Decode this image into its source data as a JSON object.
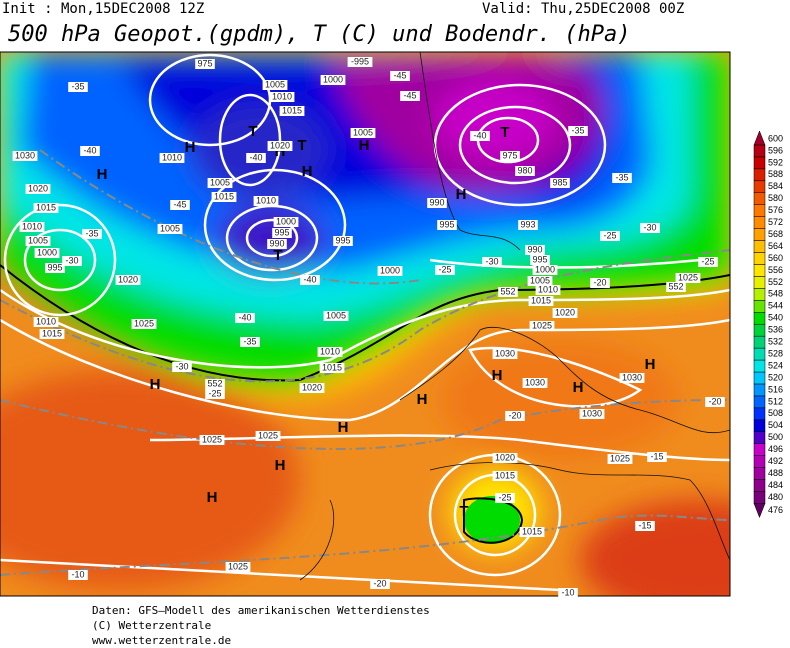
{
  "header": {
    "init": "Init : Mon,15DEC2008 12Z",
    "valid": "Valid: Thu,25DEC2008 00Z",
    "title": "500 hPa Geopot.(gpdm), T (C) und Bodendr. (hPa)"
  },
  "colorbar": {
    "levels": [
      476,
      480,
      484,
      488,
      492,
      496,
      500,
      504,
      508,
      512,
      516,
      520,
      524,
      528,
      532,
      536,
      540,
      544,
      548,
      552,
      556,
      560,
      564,
      568,
      572,
      576,
      580,
      584,
      588,
      592,
      596,
      600
    ],
    "colors": [
      "#600060",
      "#780078",
      "#8c008c",
      "#a000a0",
      "#b400b4",
      "#c800c8",
      "#5000c8",
      "#0000dc",
      "#0032ff",
      "#0064ff",
      "#0096ff",
      "#00c8ff",
      "#00e6e6",
      "#00dcb4",
      "#00d278",
      "#00d23c",
      "#00dc00",
      "#64e600",
      "#b4f000",
      "#e6f000",
      "#ffe600",
      "#ffd200",
      "#ffbe00",
      "#ffa000",
      "#ff8c00",
      "#ff7800",
      "#f05a00",
      "#e63c00",
      "#dc1e00",
      "#c80000",
      "#b40014",
      "#a00028"
    ]
  },
  "map_labels": [
    "-995",
    "-45",
    "-45",
    "1000",
    "1005",
    "1010",
    "1015",
    "T",
    "T",
    "H",
    "H",
    "-40",
    "1020",
    "H",
    "1005",
    "H",
    "1010",
    "1030",
    "-40",
    "H",
    "-35",
    "T",
    "-40",
    "-35",
    "975",
    "980",
    "985",
    "-35",
    "H",
    "990",
    "995",
    "993",
    "-25",
    "-30",
    "1020",
    "1015",
    "1010",
    "1005",
    "1000",
    "995",
    "-35",
    "-30",
    "1020",
    "-45",
    "1005",
    "1015",
    "1010",
    "1000",
    "995",
    "990",
    "T",
    "-40",
    "995",
    "1005",
    "1000",
    "-25",
    "-30",
    "990",
    "995",
    "1000",
    "1005",
    "1010",
    "1015",
    "1020",
    "1025",
    "-20",
    "1025",
    "-25",
    "1010",
    "1015",
    "1025",
    "-40",
    "-35",
    "1005",
    "1010",
    "1015",
    "-30",
    "H",
    "-25",
    "1020",
    "1030",
    "H",
    "1030",
    "H",
    "1030",
    "H",
    "H",
    "-20",
    "1030",
    "-20",
    "H",
    "1025",
    "1025",
    "H",
    "1020",
    "1025",
    "-15",
    "1015",
    "H",
    "-25",
    "T",
    "1015",
    "-15",
    "1025",
    "-10",
    "-20",
    "-10",
    "552",
    "552",
    "552",
    "975"
  ],
  "footer": [
    "Daten: GFS–Modell des amerikanischen Wetterdienstes",
    "(C) Wetterzentrale",
    "www.wetterzentrale.de"
  ]
}
